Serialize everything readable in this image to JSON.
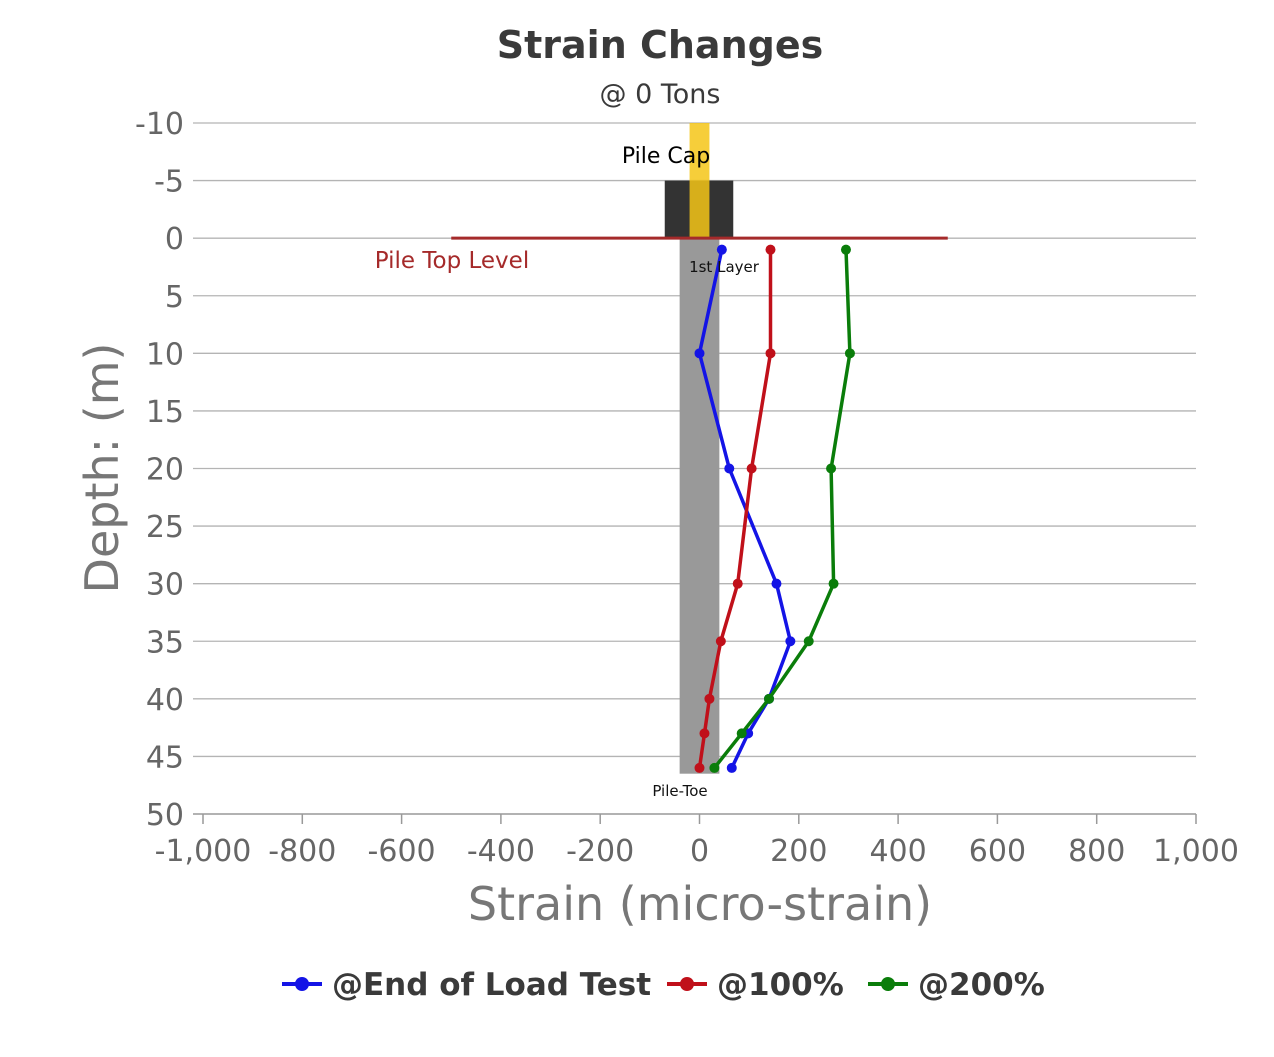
{
  "chart_data": {
    "type": "line",
    "title": "Strain Changes",
    "subtitle": "@ 0 Tons",
    "xlabel": "Strain (micro-strain)",
    "ylabel": "Depth: (m)",
    "xlim": [
      -1000,
      1000
    ],
    "ylim": [
      -10,
      50
    ],
    "y_inverted": true,
    "grid": true,
    "legend_position": "bottom",
    "x_ticks": [
      -1000,
      -800,
      -600,
      -400,
      -200,
      0,
      200,
      400,
      600,
      800,
      1000
    ],
    "x_tick_labels": [
      "-1,000",
      "-800",
      "-600",
      "-400",
      "-200",
      "0",
      "200",
      "400",
      "600",
      "800",
      "1,000"
    ],
    "y_ticks": [
      -10,
      -5,
      0,
      5,
      10,
      15,
      20,
      25,
      30,
      35,
      40,
      45,
      50
    ],
    "y_tick_labels": [
      "-10",
      "-5",
      "0",
      "5",
      "10",
      "15",
      "20",
      "25",
      "30",
      "35",
      "40",
      "45",
      "50"
    ],
    "series": [
      {
        "name": "@End of Load Test",
        "color": "#1414e6",
        "points": [
          [
            45,
            1
          ],
          [
            0,
            10
          ],
          [
            60,
            20
          ],
          [
            155,
            30
          ],
          [
            183,
            35
          ],
          [
            140,
            40
          ],
          [
            98,
            43
          ],
          [
            65,
            46
          ]
        ]
      },
      {
        "name": "@100%",
        "color": "#c0101a",
        "points": [
          [
            143,
            1
          ],
          [
            143,
            10
          ],
          [
            105,
            20
          ],
          [
            77,
            30
          ],
          [
            43,
            35
          ],
          [
            20,
            40
          ],
          [
            10,
            43
          ],
          [
            0,
            46
          ]
        ]
      },
      {
        "name": "@200%",
        "color": "#0a7d0a",
        "points": [
          [
            295,
            1
          ],
          [
            303,
            10
          ],
          [
            265,
            20
          ],
          [
            270,
            30
          ],
          [
            220,
            35
          ],
          [
            140,
            40
          ],
          [
            85,
            43
          ],
          [
            30,
            46
          ]
        ]
      }
    ],
    "annotations": {
      "pile_cap_label": "Pile Cap",
      "pile_top_label": "Pile Top Level",
      "first_layer_label": "1st Layer",
      "pile_toe_label": "Pile-Toe",
      "pile_color": "#999999",
      "pile_cap_color": "#333333",
      "column_color": "#f5c518",
      "pile_top_line_color": "#a52a2a"
    }
  }
}
